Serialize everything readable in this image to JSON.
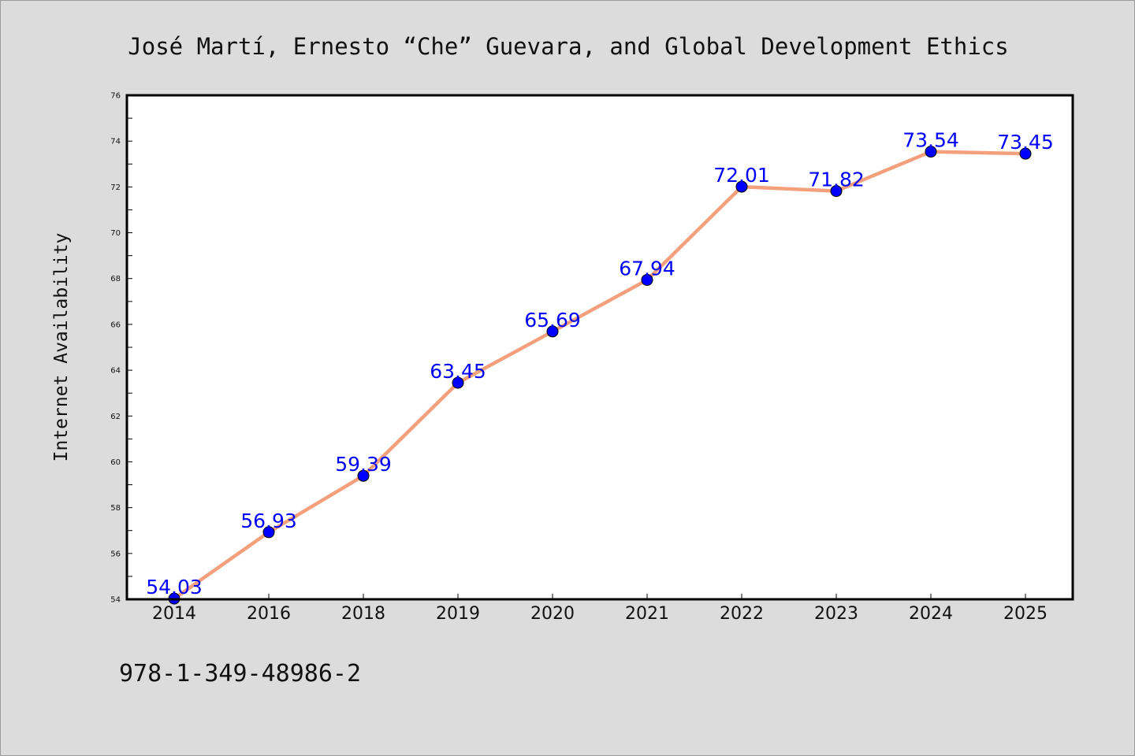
{
  "page": {
    "background": "#dcdcdc",
    "footer_text": "978-1-349-48986-2"
  },
  "chart_data": {
    "type": "line",
    "title": "José Martí, Ernesto “Che” Guevara, and Global Development Ethics",
    "xlabel": "",
    "ylabel": "Internet Availability",
    "categories": [
      "2014",
      "2016",
      "2018",
      "2019",
      "2020",
      "2021",
      "2022",
      "2023",
      "2024",
      "2025"
    ],
    "series": [
      {
        "values": [
          54.03,
          56.93,
          59.39,
          63.45,
          65.69,
          67.94,
          72.01,
          71.82,
          73.54,
          73.45
        ],
        "line_color": "#f4a07c",
        "marker_color": "#0000ff",
        "label_color": "#0000ff"
      }
    ],
    "data_labels": [
      "54.03",
      "56.93",
      "59.39",
      "63.45",
      "65.69",
      "67.94",
      "72.01",
      "71.82",
      "73.54",
      "73.45"
    ],
    "ylim": [
      54,
      76
    ],
    "yticks": [
      54,
      56,
      58,
      60,
      62,
      64,
      66,
      68,
      70,
      72,
      74,
      76
    ],
    "grid": false,
    "legend": "none",
    "plot_background": "#ffffff",
    "frame_color": "#000000"
  }
}
